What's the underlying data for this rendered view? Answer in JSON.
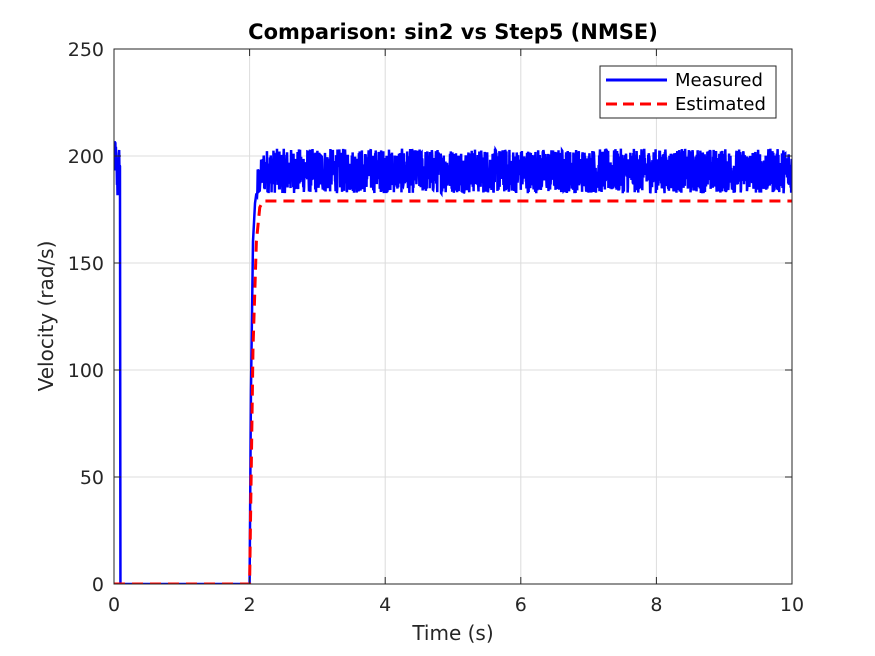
{
  "chart_data": {
    "type": "line",
    "title": "Comparison: sin2 vs Step5 (NMSE)",
    "xlabel": "Time (s)",
    "ylabel": "Velocity (rad/s)",
    "xlim": [
      0,
      10
    ],
    "ylim": [
      0,
      250
    ],
    "xticks": [
      "0",
      "2",
      "4",
      "6",
      "8",
      "10"
    ],
    "yticks": [
      "0",
      "50",
      "100",
      "150",
      "200",
      "250"
    ],
    "grid": true,
    "legend_position": "top-right",
    "series": [
      {
        "name": "Measured",
        "color": "#0000ff",
        "style": "solid",
        "noise_band": [
          182,
          204
        ],
        "x": [
          0,
          0.02,
          0.05,
          0.08,
          0.09,
          0.095,
          2.0,
          2.02,
          2.05,
          2.08,
          2.12,
          2.2,
          2.3,
          10
        ],
        "y": [
          194,
          204,
          185,
          200,
          190,
          0,
          0,
          90,
          160,
          178,
          187,
          193,
          193,
          193
        ]
      },
      {
        "name": "Estimated",
        "color": "#ff0000",
        "style": "dashed",
        "x": [
          0,
          2.0,
          2.05,
          2.1,
          2.15,
          2.2,
          10
        ],
        "y": [
          0,
          0,
          110,
          160,
          176,
          179,
          179
        ]
      }
    ]
  }
}
